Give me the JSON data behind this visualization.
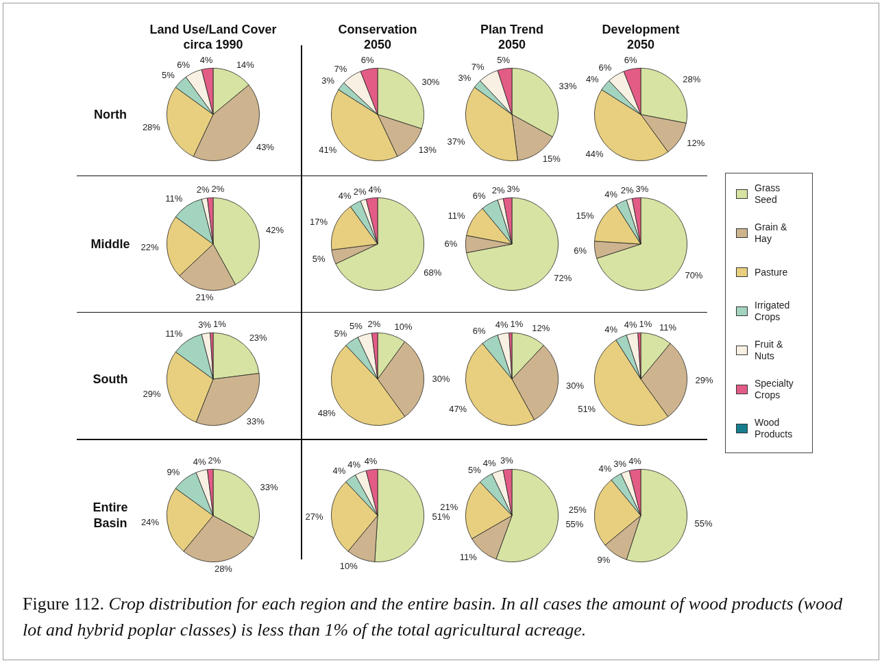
{
  "chart_data": [
    {
      "type": "pie",
      "title": "Land Use/Land Cover circa 1990",
      "ylabel": "North",
      "legend": "right",
      "categories": [
        "Grass Seed",
        "Grain & Hay",
        "Pasture",
        "Irrigated Crops",
        "Fruit & Nuts",
        "Specialty Crops",
        "Wood Products"
      ],
      "colors": [
        "#d6e3a2",
        "#cdb48f",
        "#e8cf7f",
        "#a3d4bf",
        "#f8f0e2",
        "#e25c86",
        "#157d8c"
      ],
      "values": [
        14,
        43,
        28,
        5,
        6,
        4,
        0
      ],
      "value_labels": [
        "14%",
        "43%",
        "28%",
        "5%",
        "6%",
        "4%",
        null
      ]
    },
    {
      "type": "pie",
      "title": "Conservation 2050",
      "colors": [
        "#d6e3a2",
        "#cdb48f",
        "#e8cf7f",
        "#a3d4bf",
        "#f8f0e2",
        "#e25c86",
        "#157d8c"
      ],
      "values": [
        30,
        13,
        41,
        3,
        7,
        6,
        0
      ],
      "value_labels": [
        "30%",
        "13%",
        "41%",
        "3%",
        "7%",
        "6%",
        null
      ]
    },
    {
      "type": "pie",
      "title": "Plan Trend 2050",
      "colors": [
        "#d6e3a2",
        "#cdb48f",
        "#e8cf7f",
        "#a3d4bf",
        "#f8f0e2",
        "#e25c86",
        "#157d8c"
      ],
      "values": [
        33,
        15,
        37,
        3,
        7,
        5,
        0
      ],
      "value_labels": [
        "33%",
        "15%",
        "37%",
        "3%",
        "7%",
        "5%",
        null
      ]
    },
    {
      "type": "pie",
      "title": "Development 2050",
      "colors": [
        "#d6e3a2",
        "#cdb48f",
        "#e8cf7f",
        "#a3d4bf",
        "#f8f0e2",
        "#e25c86",
        "#157d8c"
      ],
      "values": [
        28,
        12,
        44,
        4,
        6,
        6,
        0
      ],
      "value_labels": [
        "28%",
        "12%",
        "44%",
        "4%",
        "6%",
        "6%",
        null
      ]
    },
    {
      "type": "pie",
      "ylabel": "Middle",
      "colors": [
        "#d6e3a2",
        "#cdb48f",
        "#e8cf7f",
        "#a3d4bf",
        "#f8f0e2",
        "#e25c86",
        "#157d8c"
      ],
      "values": [
        42,
        21,
        22,
        11,
        2,
        2,
        0
      ],
      "value_labels": [
        "42%",
        "21%",
        "22%",
        "11%",
        "2%",
        "2%",
        null
      ]
    },
    {
      "type": "pie",
      "colors": [
        "#d6e3a2",
        "#cdb48f",
        "#e8cf7f",
        "#a3d4bf",
        "#f8f0e2",
        "#e25c86",
        "#157d8c"
      ],
      "values": [
        68,
        5,
        17,
        4,
        2,
        4,
        0
      ],
      "value_labels": [
        "68%",
        "5%",
        "17%",
        "4%",
        "2%",
        "4%",
        null
      ]
    },
    {
      "type": "pie",
      "colors": [
        "#d6e3a2",
        "#cdb48f",
        "#e8cf7f",
        "#a3d4bf",
        "#f8f0e2",
        "#e25c86",
        "#157d8c"
      ],
      "values": [
        72,
        6,
        11,
        6,
        2,
        3,
        0
      ],
      "value_labels": [
        "72%",
        "6%",
        "11%",
        "6%",
        "2%",
        "3%",
        null
      ]
    },
    {
      "type": "pie",
      "colors": [
        "#d6e3a2",
        "#cdb48f",
        "#e8cf7f",
        "#a3d4bf",
        "#f8f0e2",
        "#e25c86",
        "#157d8c"
      ],
      "values": [
        70,
        6,
        15,
        4,
        2,
        3,
        0
      ],
      "value_labels": [
        "70%",
        "6%",
        "15%",
        "4%",
        "2%",
        "3%",
        null
      ]
    },
    {
      "type": "pie",
      "ylabel": "South",
      "colors": [
        "#d6e3a2",
        "#cdb48f",
        "#e8cf7f",
        "#a3d4bf",
        "#f8f0e2",
        "#e25c86",
        "#157d8c"
      ],
      "values": [
        23,
        33,
        29,
        11,
        3,
        1,
        0
      ],
      "value_labels": [
        "23%",
        "33%",
        "29%",
        "11%",
        "3%",
        "1%",
        null
      ]
    },
    {
      "type": "pie",
      "colors": [
        "#d6e3a2",
        "#cdb48f",
        "#e8cf7f",
        "#a3d4bf",
        "#f8f0e2",
        "#e25c86",
        "#157d8c"
      ],
      "values": [
        10,
        30,
        48,
        5,
        5,
        2,
        0
      ],
      "value_labels": [
        "10%",
        "30%",
        "48%",
        "5%",
        "5%",
        "2%",
        null
      ]
    },
    {
      "type": "pie",
      "colors": [
        "#d6e3a2",
        "#cdb48f",
        "#e8cf7f",
        "#a3d4bf",
        "#f8f0e2",
        "#e25c86",
        "#157d8c"
      ],
      "values": [
        12,
        30,
        47,
        6,
        4,
        1,
        0
      ],
      "value_labels": [
        "12%",
        "30%",
        "47%",
        "6%",
        "4%",
        "1%",
        null
      ]
    },
    {
      "type": "pie",
      "colors": [
        "#d6e3a2",
        "#cdb48f",
        "#e8cf7f",
        "#a3d4bf",
        "#f8f0e2",
        "#e25c86",
        "#157d8c"
      ],
      "values": [
        11,
        29,
        51,
        4,
        4,
        1,
        0
      ],
      "value_labels": [
        "11%",
        "29%",
        "51%",
        "4%",
        "4%",
        "1%",
        null
      ]
    },
    {
      "type": "pie",
      "ylabel": "Entire Basin",
      "colors": [
        "#d6e3a2",
        "#cdb48f",
        "#e8cf7f",
        "#a3d4bf",
        "#f8f0e2",
        "#e25c86",
        "#157d8c"
      ],
      "values": [
        33,
        28,
        24,
        9,
        4,
        2,
        0
      ],
      "value_labels": [
        "33%",
        "28%",
        "24%",
        "9%",
        "4%",
        "2%",
        null
      ]
    },
    {
      "type": "pie",
      "colors": [
        "#d6e3a2",
        "#cdb48f",
        "#e8cf7f",
        "#a3d4bf",
        "#f8f0e2",
        "#e25c86",
        "#157d8c"
      ],
      "values": [
        51,
        10,
        27,
        4,
        4,
        4,
        0
      ],
      "value_labels": [
        "51%",
        "10%",
        "27%",
        "4%",
        "4%",
        "4%",
        null
      ]
    },
    {
      "type": "pie",
      "colors": [
        "#d6e3a2",
        "#cdb48f",
        "#e8cf7f",
        "#a3d4bf",
        "#f8f0e2",
        "#e25c86",
        "#157d8c"
      ],
      "values": [
        55,
        11,
        21,
        5,
        4,
        3,
        0
      ],
      "value_labels": [
        "55%",
        "11%",
        "21%",
        "5%",
        "4%",
        "3%",
        null
      ]
    },
    {
      "type": "pie",
      "colors": [
        "#d6e3a2",
        "#cdb48f",
        "#e8cf7f",
        "#a3d4bf",
        "#f8f0e2",
        "#e25c86",
        "#157d8c"
      ],
      "values": [
        55,
        9,
        25,
        4,
        3,
        4,
        0
      ],
      "value_labels": [
        "55%",
        "9%",
        "25%",
        "4%",
        "3%",
        "4%",
        null
      ]
    },
    {
      "type": "other",
      "annotations": [
        "Figure 112.",
        "Crop distribution for each region and the entire basin.  In all cases the amount of wood products (wood lot and hybrid poplar classes) is less than 1% of the total agricultural acreage."
      ]
    }
  ]
}
